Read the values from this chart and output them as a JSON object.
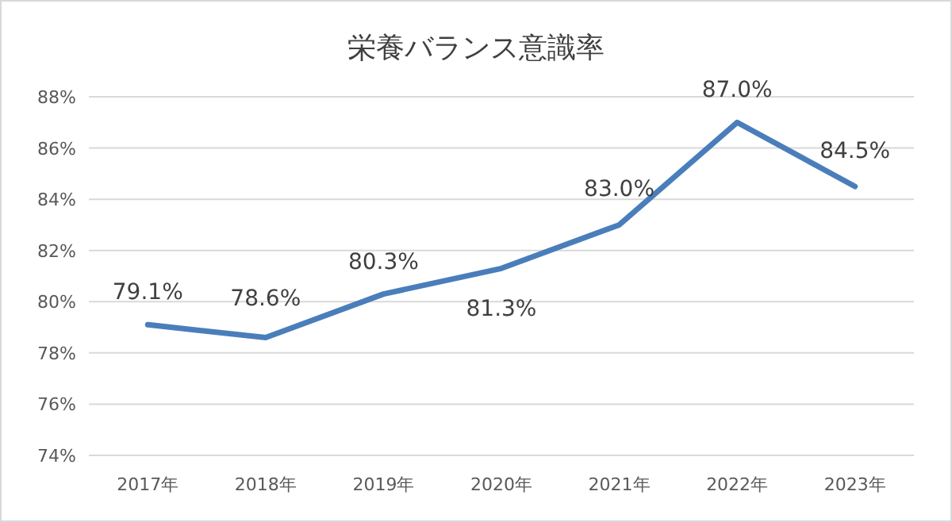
{
  "chart_data": {
    "type": "line",
    "title": "栄養バランス意識率",
    "categories": [
      "2017年",
      "2018年",
      "2019年",
      "2020年",
      "2021年",
      "2022年",
      "2023年"
    ],
    "values": [
      79.1,
      78.6,
      80.3,
      81.3,
      83.0,
      87.0,
      84.5
    ],
    "value_labels": [
      "79.1%",
      "78.6%",
      "80.3%",
      "81.3%",
      "83.0%",
      "87.0%",
      "84.5%"
    ],
    "color": "#4a7ebb",
    "ylim": [
      74,
      88
    ],
    "yticks": [
      {
        "value": 74,
        "label": "74%"
      },
      {
        "value": 76,
        "label": "76%"
      },
      {
        "value": 78,
        "label": "78%"
      },
      {
        "value": 80,
        "label": "80%"
      },
      {
        "value": 82,
        "label": "82%"
      },
      {
        "value": 84,
        "label": "84%"
      },
      {
        "value": 86,
        "label": "86%"
      },
      {
        "value": 88,
        "label": "88%"
      }
    ],
    "grid": "y"
  }
}
